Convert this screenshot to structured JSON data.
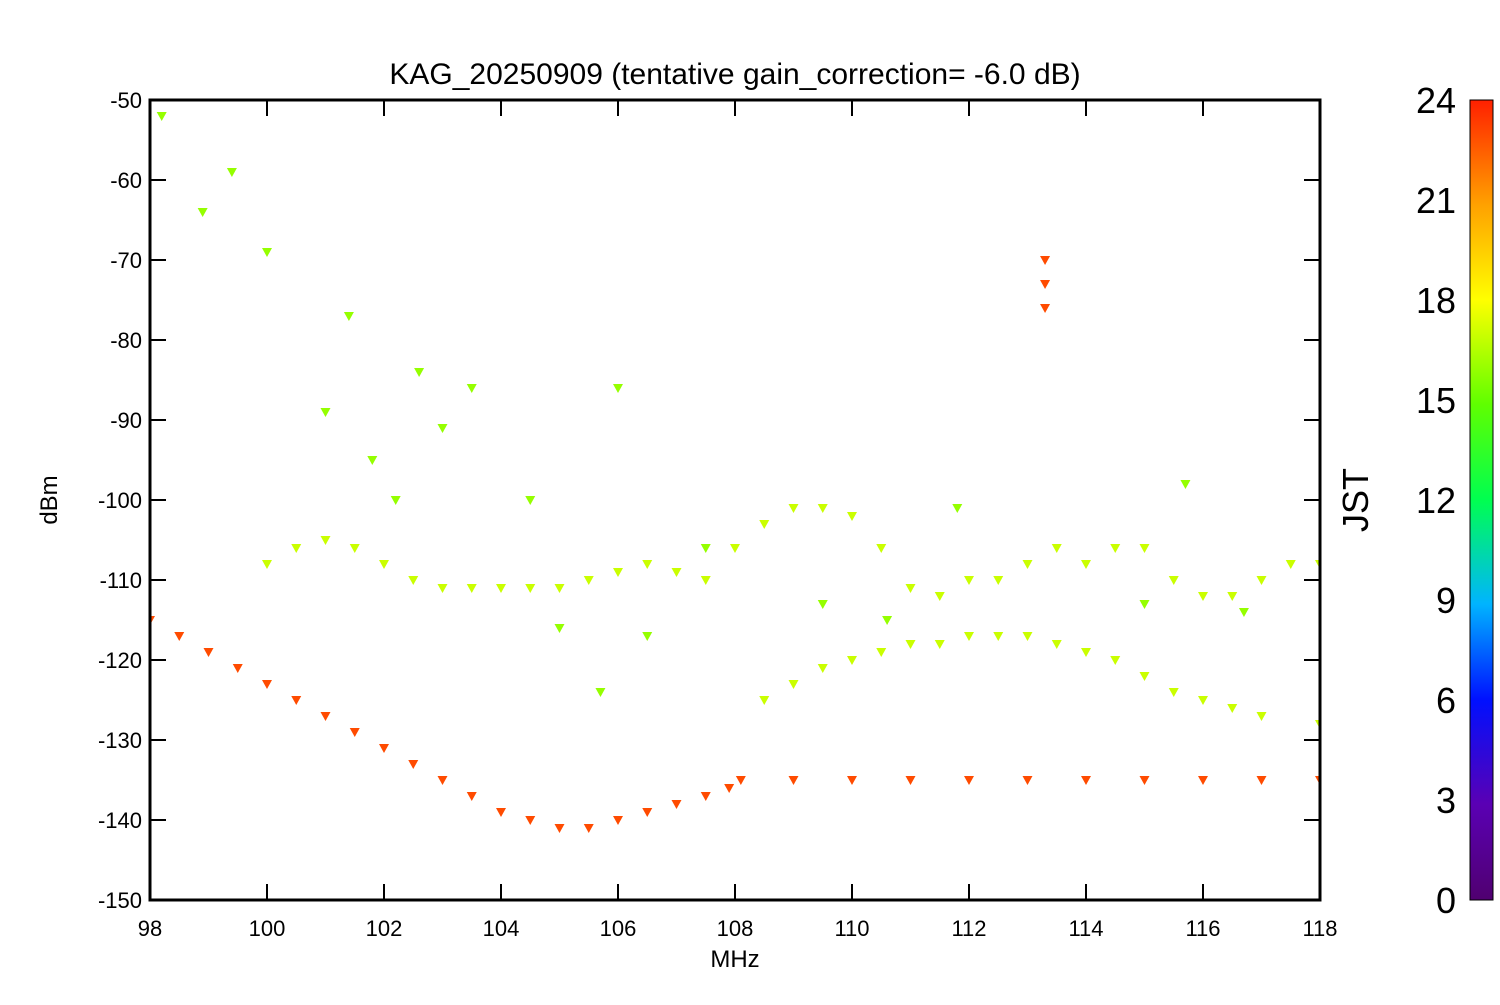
{
  "chart_data": {
    "type": "scatter",
    "title": "KAG_20250909 (tentative gain_correction= -6.0 dB)",
    "xlabel": "MHz",
    "ylabel": "dBm",
    "xlim": [
      98,
      118
    ],
    "ylim": [
      -150,
      -50
    ],
    "x_ticks": [
      98,
      100,
      102,
      104,
      106,
      108,
      110,
      112,
      114,
      116,
      118
    ],
    "y_ticks": [
      -50,
      -60,
      -70,
      -80,
      -90,
      -100,
      -110,
      -120,
      -130,
      -140,
      -150
    ],
    "colorbar": {
      "label": "JST",
      "range": [
        0,
        24
      ],
      "ticks": [
        0,
        3,
        6,
        9,
        12,
        15,
        18,
        21,
        24
      ],
      "colormap": "rainbow"
    },
    "marker": "triangle-down",
    "series": [
      {
        "description_key": "noise_floor",
        "color_value": 23,
        "x": [
          98,
          98.5,
          99,
          99.5,
          100,
          100.5,
          101,
          101.5,
          102,
          102.5,
          103,
          103.5,
          104,
          104.5,
          105,
          105.5,
          106,
          106.5,
          107,
          107.5,
          107.9,
          108.1,
          109,
          110,
          111,
          112,
          113,
          114,
          115,
          116,
          117,
          118
        ],
        "y": [
          -115,
          -117,
          -119,
          -121,
          -123,
          -125,
          -127,
          -129,
          -131,
          -133,
          -135,
          -137,
          -139,
          -140,
          -141,
          -141,
          -140,
          -139,
          -138,
          -137,
          -136,
          -135,
          -135,
          -135,
          -135,
          -135,
          -135,
          -135,
          -135,
          -135,
          -135,
          -135
        ]
      },
      {
        "description_key": "emissions_band",
        "color_value": 17,
        "x": [
          108.5,
          109,
          109.5,
          110,
          110.5,
          111,
          111.5,
          112,
          112.5,
          113,
          113.5,
          114,
          114.5,
          115,
          115.5,
          116,
          116.5,
          117,
          118
        ],
        "y": [
          -125,
          -123,
          -121,
          -120,
          -119,
          -118,
          -118,
          -117,
          -117,
          -117,
          -118,
          -119,
          -120,
          -122,
          -124,
          -125,
          -126,
          -127,
          -128
        ]
      },
      {
        "description_key": "arc_trace",
        "color_value": 17,
        "x": [
          100,
          100.5,
          101,
          101.5,
          102,
          102.5,
          103,
          103.5,
          104,
          104.5,
          105,
          105.5,
          106,
          106.5,
          107,
          107.5,
          108,
          108.5,
          109,
          109.5,
          110,
          110.5,
          111,
          111.5,
          112,
          112.5,
          113,
          113.5,
          114,
          114.5,
          115,
          115.5,
          116,
          116.5,
          117,
          117.5,
          118
        ],
        "y": [
          -108,
          -106,
          -105,
          -106,
          -108,
          -110,
          -111,
          -111,
          -111,
          -111,
          -111,
          -110,
          -109,
          -108,
          -109,
          -110,
          -106,
          -103,
          -101,
          -101,
          -102,
          -106,
          -111,
          -112,
          -110,
          -110,
          -108,
          -106,
          -108,
          -106,
          -106,
          -110,
          -112,
          -112,
          -110,
          -108,
          -108
        ]
      },
      {
        "description_key": "fm_peaks",
        "color_value": 16,
        "x": [
          98.2,
          98.9,
          99.4,
          100,
          101,
          101.4,
          101.8,
          102.2,
          102.6,
          103,
          103.5,
          104.5,
          105,
          105.7,
          106,
          106.5,
          107.5,
          109.5,
          110.6,
          111.8,
          115,
          115.7,
          116.7
        ],
        "y": [
          -52,
          -64,
          -59,
          -69,
          -89,
          -77,
          -95,
          -100,
          -84,
          -91,
          -86,
          -100,
          -116,
          -124,
          -86,
          -117,
          -106,
          -113,
          -115,
          -101,
          -113,
          -98,
          -114
        ]
      },
      {
        "description_key": "band_113",
        "color_value": 23,
        "x": [
          113.3,
          113.3,
          113.3
        ],
        "y": [
          -70,
          -73,
          -76
        ]
      }
    ]
  }
}
